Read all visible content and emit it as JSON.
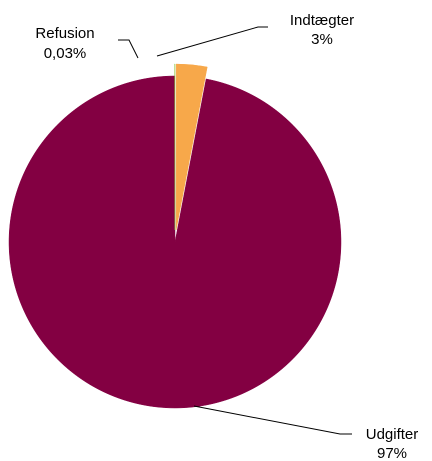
{
  "chart_data": {
    "type": "pie",
    "title": "",
    "legend": "none",
    "slices": [
      {
        "name": "Indtægter",
        "value": 3,
        "value_label": "3%",
        "color": "#F7A84A"
      },
      {
        "name": "Udgifter",
        "value": 96.97,
        "value_label": "97%",
        "color": "#830042"
      },
      {
        "name": "Refusion",
        "value": 0.03,
        "value_label": "0,03%",
        "color": "#8CC63F"
      }
    ],
    "start_angle_deg": 0,
    "direction": "clockwise"
  }
}
